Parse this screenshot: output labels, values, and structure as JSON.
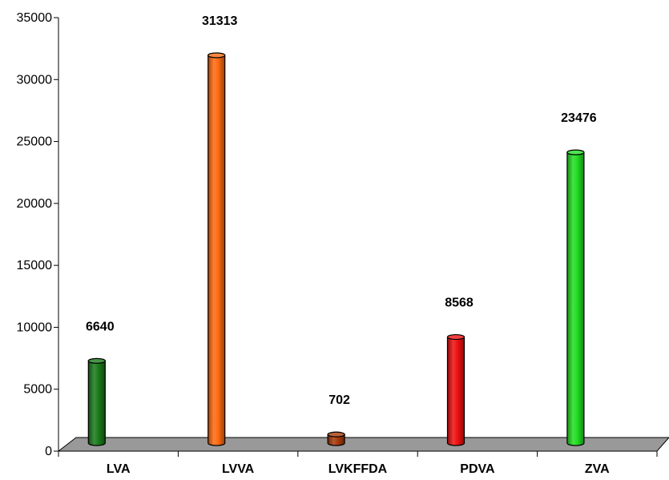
{
  "chart_data": {
    "type": "bar",
    "title": "",
    "xlabel": "",
    "ylabel": "",
    "categories": [
      "LVA",
      "LVVA",
      "LVKFFDA",
      "PDVA",
      "ZVA"
    ],
    "values": [
      6640,
      31313,
      702,
      8568,
      23476
    ],
    "data_labels": [
      "6640",
      "31313",
      "702",
      "8568",
      "23476"
    ],
    "colors": [
      "#1a7a1a",
      "#ff6a10",
      "#a83a0a",
      "#ee1010",
      "#22dd22"
    ],
    "ylim": [
      0,
      35000
    ],
    "y_ticks": [
      "0",
      "5000",
      "10000",
      "15000",
      "20000",
      "25000",
      "30000",
      "35000"
    ],
    "y_tick_values": [
      0,
      5000,
      10000,
      15000,
      20000,
      25000,
      30000,
      35000
    ],
    "grid": false,
    "legend": "none",
    "style": "3d-cylinder",
    "floor_color": "#999999"
  }
}
